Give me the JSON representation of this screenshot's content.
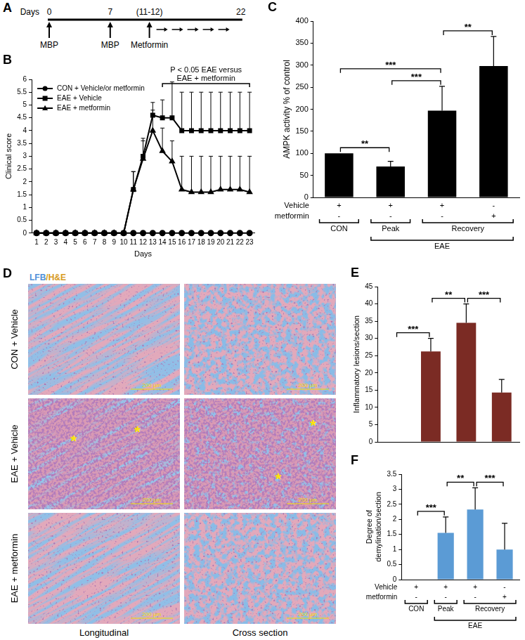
{
  "chart_data": [
    {
      "type": "line",
      "title": "B",
      "x": [
        1,
        2,
        3,
        4,
        5,
        6,
        7,
        8,
        9,
        10,
        11,
        12,
        13,
        14,
        15,
        16,
        17,
        18,
        19,
        20,
        21,
        22,
        23
      ],
      "xlim": [
        0.5,
        23.5
      ],
      "xticks": [
        1,
        2,
        3,
        4,
        5,
        6,
        7,
        8,
        9,
        10,
        11,
        12,
        13,
        14,
        15,
        16,
        17,
        18,
        19,
        20,
        21,
        22,
        23
      ],
      "ylim": [
        0,
        6
      ],
      "yticks": [
        0,
        0.5,
        1,
        1.5,
        2,
        2.5,
        3,
        3.5,
        4,
        4.5,
        5,
        5.5,
        6
      ],
      "x_label": "Days",
      "y_label": "Clinical score",
      "grid": false,
      "legend": "upper left",
      "series": [
        {
          "name": "CON + Vehicle/or metformin",
          "color": "#000000",
          "marker": "circle",
          "values": [
            0,
            0,
            0,
            0,
            0,
            0,
            0,
            0,
            0,
            0,
            0,
            0,
            0,
            0,
            0,
            0,
            0,
            0,
            0,
            0,
            0,
            0,
            0
          ]
        },
        {
          "name": "EAE + Vehicle",
          "color": "#000000",
          "marker": "square",
          "values": [
            0,
            0,
            0,
            0,
            0,
            0,
            0,
            0,
            0,
            0,
            1.7,
            3.0,
            4.6,
            4.5,
            4.5,
            4.0,
            4.0,
            4.0,
            4.0,
            4.0,
            4.0,
            4.0,
            4.0
          ],
          "errors": [
            null,
            null,
            null,
            null,
            null,
            null,
            null,
            null,
            null,
            null,
            0.7,
            0.6,
            0.5,
            0.7,
            1.4,
            1.5,
            1.5,
            1.5,
            1.5,
            1.5,
            1.5,
            1.5,
            1.5
          ]
        },
        {
          "name": "EAE + metformin",
          "color": "#000000",
          "marker": "triangle",
          "values": [
            0,
            0,
            0,
            0,
            0,
            0,
            0,
            0,
            0,
            0,
            1.7,
            2.9,
            4.0,
            3.2,
            2.8,
            1.7,
            1.6,
            1.6,
            1.6,
            1.7,
            1.7,
            1.7,
            1.6
          ],
          "errors": [
            null,
            null,
            null,
            null,
            null,
            null,
            null,
            null,
            null,
            null,
            0.7,
            0.8,
            0.8,
            0.9,
            0.8,
            1.3,
            1.4,
            1.4,
            1.4,
            1.3,
            1.3,
            1.3,
            1.4
          ]
        }
      ],
      "annotations": [
        {
          "text": [
            "P < 0.05 EAE versus",
            "EAE + metformin"
          ],
          "from": 14,
          "to": 23
        }
      ]
    },
    {
      "type": "bar",
      "title": "C",
      "categories": [
        null,
        null,
        null,
        null
      ],
      "values": [
        100,
        70,
        197,
        298
      ],
      "errors": [
        null,
        12,
        55,
        67
      ],
      "color": "#000000",
      "ylim": [
        0,
        400
      ],
      "yticks": [
        0,
        50,
        100,
        150,
        200,
        250,
        300,
        350,
        400
      ],
      "y_label": "AMPK activity % of control",
      "grid": false,
      "tick_labels": "y",
      "comparisons": [
        {
          "from": 0,
          "to": 1,
          "label": "**"
        },
        {
          "from": 0,
          "to": 2,
          "label": "***"
        },
        {
          "from": 1,
          "to": 2,
          "label": "***"
        },
        {
          "from": 2,
          "to": 3,
          "label": "**"
        }
      ],
      "treatments": [
        {
          "label": "Vehicle",
          "marks": [
            "+",
            "+",
            "+",
            "-"
          ]
        },
        {
          "label": "metformin",
          "marks": [
            "-",
            "-",
            "-",
            "+"
          ]
        }
      ],
      "groups": [
        {
          "label": "CON",
          "from": 0,
          "to": 0
        },
        {
          "label": "Peak",
          "from": 1,
          "to": 1
        },
        {
          "label": "Recovery",
          "from": 2,
          "to": 3
        },
        {
          "label": "EAE",
          "from": 1,
          "to": 3
        }
      ]
    },
    {
      "type": "bar",
      "title": "E",
      "categories": [
        null,
        null,
        null,
        null
      ],
      "values": [
        0,
        26.2,
        34.5,
        14.3
      ],
      "errors": [
        null,
        3.8,
        5.5,
        3.8
      ],
      "color": "#7b2b24",
      "ylim": [
        0,
        45
      ],
      "yticks": [
        0,
        5,
        10,
        15,
        20,
        25,
        30,
        35,
        40,
        45
      ],
      "y_label": "Inflammatory lesions/section",
      "grid": false,
      "tick_labels": "y",
      "comparisons": [
        {
          "from": 0,
          "to": 1,
          "label": "***"
        },
        {
          "from": 1,
          "to": 2,
          "label": "**"
        },
        {
          "from": 2,
          "to": 3,
          "label": "***"
        }
      ]
    },
    {
      "type": "bar",
      "title": "F",
      "categories": [
        null,
        null,
        null,
        null
      ],
      "values": [
        0,
        1.55,
        2.33,
        1.0
      ],
      "errors": [
        null,
        0.53,
        0.72,
        0.87
      ],
      "color": "#5b9bd5",
      "ylim": [
        0,
        3.5
      ],
      "yticks": [
        0,
        0.5,
        1,
        1.5,
        2,
        2.5,
        3,
        3.5
      ],
      "y_label": "Degree of demylination/section",
      "grid": false,
      "tick_labels": "y",
      "comparisons": [
        {
          "from": 0,
          "to": 1,
          "label": "***"
        },
        {
          "from": 1,
          "to": 2,
          "label": "**"
        },
        {
          "from": 2,
          "to": 3,
          "label": "***"
        }
      ],
      "treatments": [
        {
          "label": "Vehicle",
          "marks": [
            "+",
            "+",
            "+",
            "-"
          ]
        },
        {
          "label": "metformin",
          "marks": [
            "-",
            "-",
            "-",
            "+"
          ]
        }
      ],
      "groups": [
        {
          "label": "CON",
          "from": 0,
          "to": 0
        },
        {
          "label": "Peak",
          "from": 1,
          "to": 1
        },
        {
          "label": "Recovery",
          "from": 2,
          "to": 3
        },
        {
          "label": "EAE",
          "from": 1,
          "to": 3
        }
      ]
    }
  ],
  "timeline": {
    "title": "A",
    "axis_label": "Days",
    "marks": [
      {
        "day": 0,
        "label": "0",
        "event": "MBP"
      },
      {
        "day": 7,
        "label": "7",
        "event": "MBP"
      },
      {
        "days": [
          11,
          12
        ],
        "label": "(11-12)",
        "event": "Metformin"
      },
      {
        "day": 22,
        "label": "22"
      }
    ],
    "treatment": {
      "from_mark": 2,
      "to_mark": 3
    }
  },
  "histology": {
    "title": "D",
    "stain": "LFB/H&E",
    "rows": [
      "CON + Vehicle",
      "EAE + Vehicle",
      "EAE + metformin"
    ],
    "columns": [
      "Longitudinal",
      "Cross section"
    ],
    "scale_bar": "200 µm",
    "lesion_marks": [
      {
        "row": 1,
        "column": 0,
        "mark": "*",
        "count": 2
      },
      {
        "row": 1,
        "column": 1,
        "mark": "*",
        "count": 2
      }
    ]
  }
}
